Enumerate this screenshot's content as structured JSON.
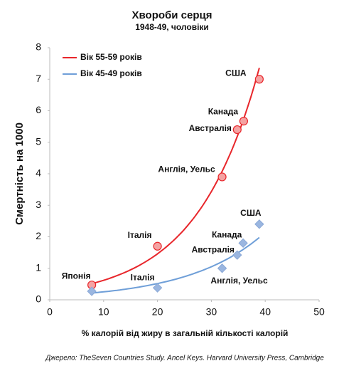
{
  "chart_data": {
    "type": "scatter",
    "title": "Хвороби серця",
    "subtitle": "1948-49, чоловіки",
    "x_label": "% калорій від жиру в загальній кількості калорій",
    "y_label": "Смертність на 1000",
    "source": "Джерело: TheSeven Countries Study. Ancel Keys. Harvard University Press, Cambridge",
    "xlim": [
      0,
      50
    ],
    "xticks": [
      0,
      10,
      20,
      30,
      40,
      50
    ],
    "ylim": [
      0,
      8
    ],
    "yticks": [
      0,
      1,
      2,
      3,
      4,
      5,
      6,
      7,
      8
    ],
    "legend": "upper left",
    "trendline": "exponential",
    "series": [
      {
        "name": "Вік 55-59 років",
        "color": "#e8262b",
        "marker": "circle",
        "x": [
          7.8,
          20,
          32,
          34.8,
          36,
          38.9
        ],
        "values": [
          0.47,
          1.7,
          3.9,
          5.4,
          5.67,
          7.0
        ],
        "labels": [
          "Японія",
          "Італія",
          "Англія, Уельс",
          "Австралія",
          "Канада",
          "США"
        ]
      },
      {
        "name": "Вік 45-49 років",
        "color": "#6f9fd8",
        "marker": "diamond",
        "x": [
          7.8,
          20,
          32,
          34.8,
          35.9,
          38.9
        ],
        "values": [
          0.27,
          0.38,
          1.0,
          1.42,
          1.8,
          2.4
        ],
        "labels": [
          null,
          "Італія",
          "Англія, Уельс",
          "Австралія",
          "Канада",
          "США"
        ]
      }
    ]
  }
}
